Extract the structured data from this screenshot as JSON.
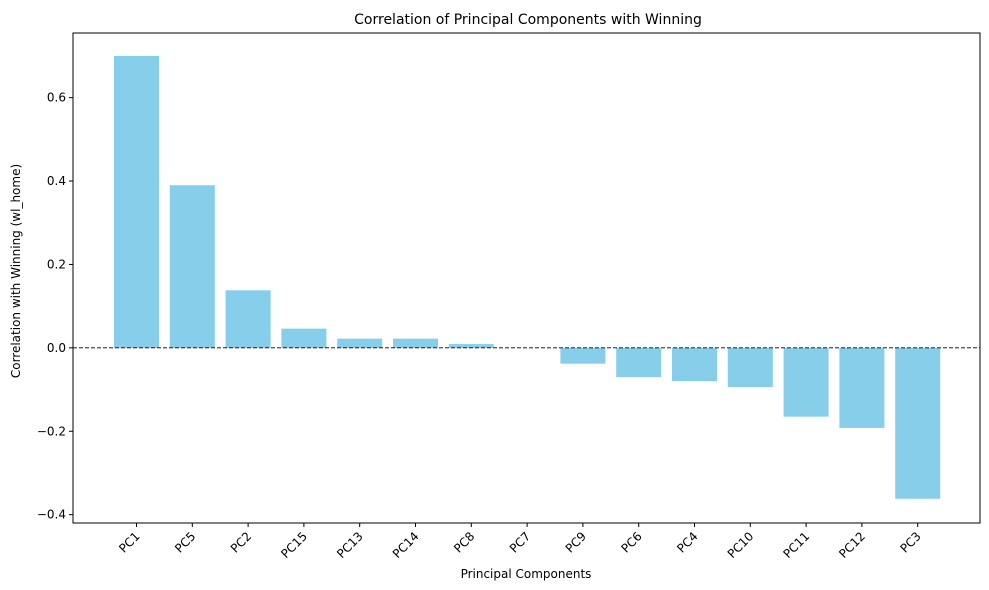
{
  "chart_data": {
    "type": "bar",
    "title": "Correlation of Principal Components with Winning",
    "xlabel": "Principal Components",
    "ylabel": "Correlation with Winning (wl_home)",
    "categories": [
      "PC1",
      "PC5",
      "PC2",
      "PC15",
      "PC13",
      "PC14",
      "PC8",
      "PC7",
      "PC9",
      "PC6",
      "PC4",
      "PC10",
      "PC11",
      "PC12",
      "PC3"
    ],
    "values": [
      0.7,
      0.39,
      0.138,
      0.046,
      0.022,
      0.022,
      0.009,
      0.0,
      -0.038,
      -0.07,
      -0.08,
      -0.094,
      -0.165,
      -0.192,
      -0.362
    ],
    "ylim": [
      -0.42,
      0.755
    ],
    "yticks": [
      {
        "value": -0.4,
        "label": "−0.4"
      },
      {
        "value": -0.2,
        "label": "−0.2"
      },
      {
        "value": 0.0,
        "label": "0.0"
      },
      {
        "value": 0.2,
        "label": "0.2"
      },
      {
        "value": 0.4,
        "label": "0.4"
      },
      {
        "value": 0.6,
        "label": "0.6"
      }
    ],
    "bar_color": "#87CEEB",
    "reference_line": {
      "y": 0,
      "style": "dashed",
      "color": "#000000"
    },
    "grid": false,
    "legend": "none",
    "x_tick_rotation_deg": 45
  }
}
